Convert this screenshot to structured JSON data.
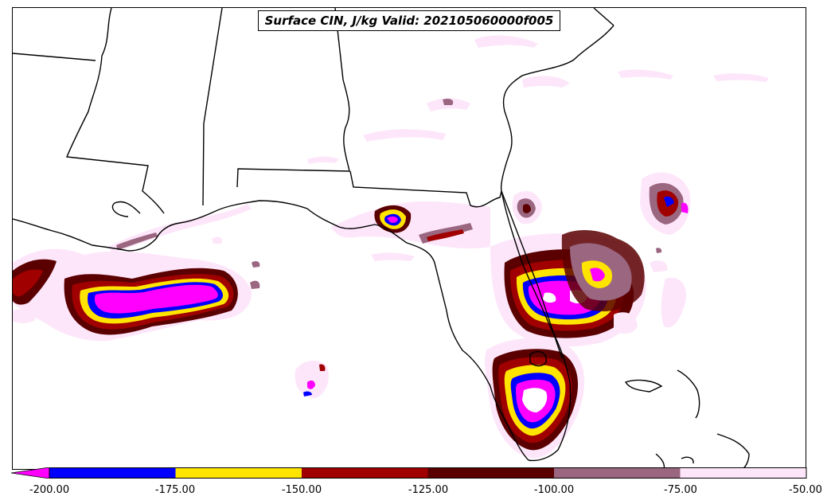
{
  "title": "Surface CIN, J/kg Valid: 202105060000f005",
  "colorbar": {
    "tick_labels": [
      "-200.00",
      "-175.00",
      "-150.00",
      "-125.00",
      "-100.00",
      "-75.00",
      "-50.00"
    ],
    "bins": [
      {
        "from": -200,
        "to": -175,
        "color": "#0000ff"
      },
      {
        "from": -175,
        "to": -150,
        "color": "#ffe400"
      },
      {
        "from": -150,
        "to": -125,
        "color": "#a00000"
      },
      {
        "from": -125,
        "to": -100,
        "color": "#5a0000"
      },
      {
        "from": -100,
        "to": -75,
        "color": "#9a6680"
      },
      {
        "from": -75,
        "to": -50,
        "color": "#fde6fa"
      }
    ],
    "under_color": "#ff00ff",
    "range": [
      -200,
      -50
    ]
  },
  "colors": {
    "extreme": "#ff00ff",
    "blue": "#0000ff",
    "yellow": "#ffe400",
    "red": "#a00000",
    "darkred": "#5a0000",
    "mauve": "#9a6680",
    "pink": "#fde6fa"
  }
}
